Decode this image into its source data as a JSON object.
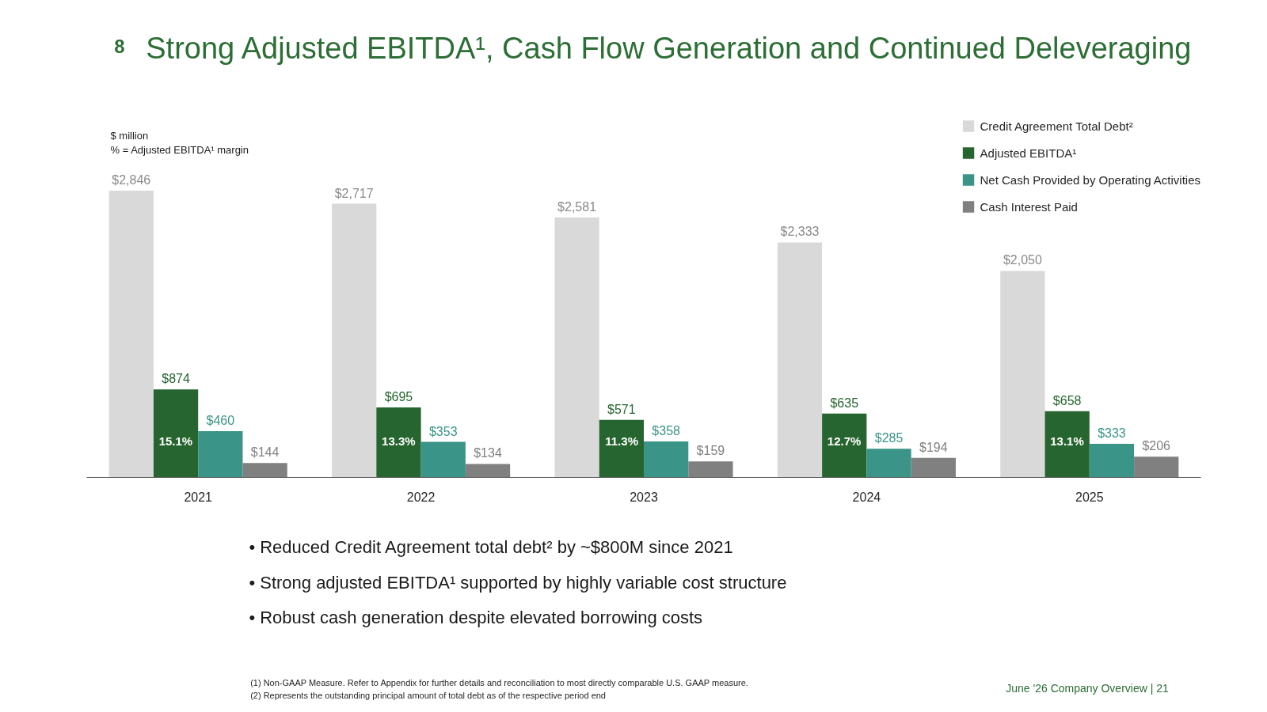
{
  "chart_data": {
    "type": "bar",
    "title": "Strong Adjusted EBITDA¹, Cash Flow Generation and Continued Deleveraging",
    "categories": [
      "2021",
      "2022",
      "2023",
      "2024",
      "2025"
    ],
    "series": [
      {
        "name": "Credit Agreement Total Debt²",
        "color": "#d9d9d9",
        "values": [
          2846,
          2717,
          2581,
          2333,
          2050
        ],
        "value_labels": [
          "$2,846",
          "$2,717",
          "$2,581",
          "$2,333",
          "$2,050"
        ]
      },
      {
        "name": "Adjusted EBITDA¹",
        "color": "#26652f",
        "values": [
          874,
          695,
          571,
          635,
          658
        ],
        "value_labels": [
          "$874",
          "$695",
          "$571",
          "$635",
          "$658"
        ]
      },
      {
        "name": "Net Cash Provided by Operating Activities",
        "color": "#3a9488",
        "values": [
          460,
          353,
          358,
          285,
          333
        ],
        "value_labels": [
          "$460",
          "$353",
          "$358",
          "$285",
          "$333"
        ]
      },
      {
        "name": "Cash Interest Paid",
        "color": "#808080",
        "values": [
          144,
          134,
          159,
          194,
          206
        ],
        "value_labels": [
          "$144",
          "$134",
          "$159",
          "$194",
          "$206"
        ]
      }
    ],
    "legend": "top right",
    "tick_labels": "x",
    "annotations": [
      "8",
      "$ million",
      "% = Adjusted EBITDA¹ margin",
      "• Reduced Credit Agreement total debt² by ~$800M since 2021",
      "• Strong adjusted EBITDA¹ supported by highly variable cost structure",
      "• Robust cash generation despite elevated borrowing costs",
      "(1) Non-GAAP Measure. Refer to Appendix for further details and reconciliation to most directly comparable U.S. GAAP measure.",
      "(2) Represents the outstanding principal amount of total debt as of the respective period end",
      "June '26 Company Overview | 21",
      {
        "text": "15.1%",
        "x": "2021",
        "y": 360
      },
      {
        "text": "13.3%",
        "x": "2022",
        "y": 360
      },
      {
        "text": "11.3%",
        "x": "2023",
        "y": 360
      },
      {
        "text": "12.7%",
        "x": "2024",
        "y": 360
      },
      {
        "text": "13.1%",
        "x": "2025",
        "y": 360
      }
    ]
  }
}
